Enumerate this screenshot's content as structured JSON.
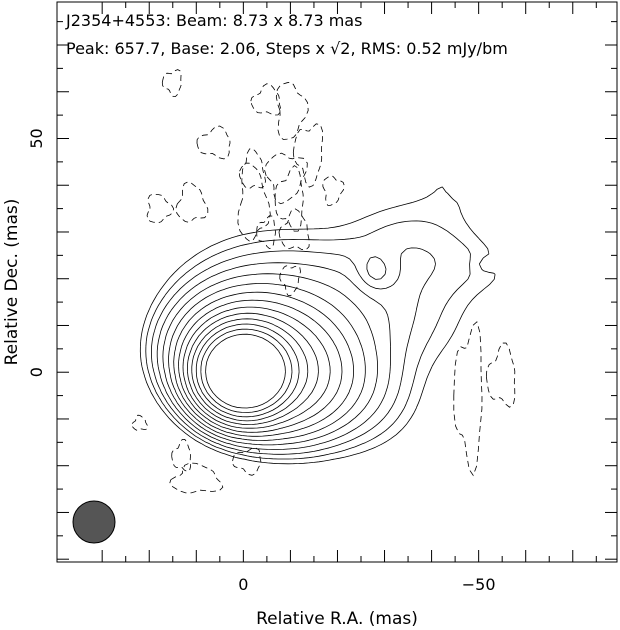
{
  "chart_data": {
    "type": "contour",
    "source": "J2354+4553",
    "header_line1": "J2354+4553: Beam: 8.73 x 8.73 mas",
    "header_line2": "Peak: 657.7, Base: 2.06, Steps x √2, RMS: 0.52 mJy/bm",
    "peak": 657.7,
    "base": 2.06,
    "step": "x √2",
    "rms": 0.52,
    "units": "mJy/bm",
    "beam_mas": [
      8.73,
      8.73
    ],
    "xlabel": "Relative R.A. (mas)",
    "ylabel": "Relative Dec. (mas)",
    "xlim": [
      39.6,
      -79.4
    ],
    "ylim": [
      -40.6,
      79.2
    ],
    "x_ticks": [
      {
        "value": 0,
        "label": "0"
      },
      {
        "value": -50,
        "label": "−50"
      }
    ],
    "y_ticks": [
      {
        "value": 0,
        "label": "0"
      },
      {
        "value": 50,
        "label": "50"
      }
    ],
    "core": {
      "x": 0,
      "y": 0
    },
    "jet_direction": "north-west (toward negative R.A.)",
    "jet_features": [
      {
        "x": -46,
        "y": 43,
        "kind": "knot"
      },
      {
        "x": -50,
        "y": 23,
        "kind": "knot"
      }
    ],
    "solid_contour_levels": 14,
    "negative_contours": "dashed",
    "beam_color": "#555555"
  }
}
